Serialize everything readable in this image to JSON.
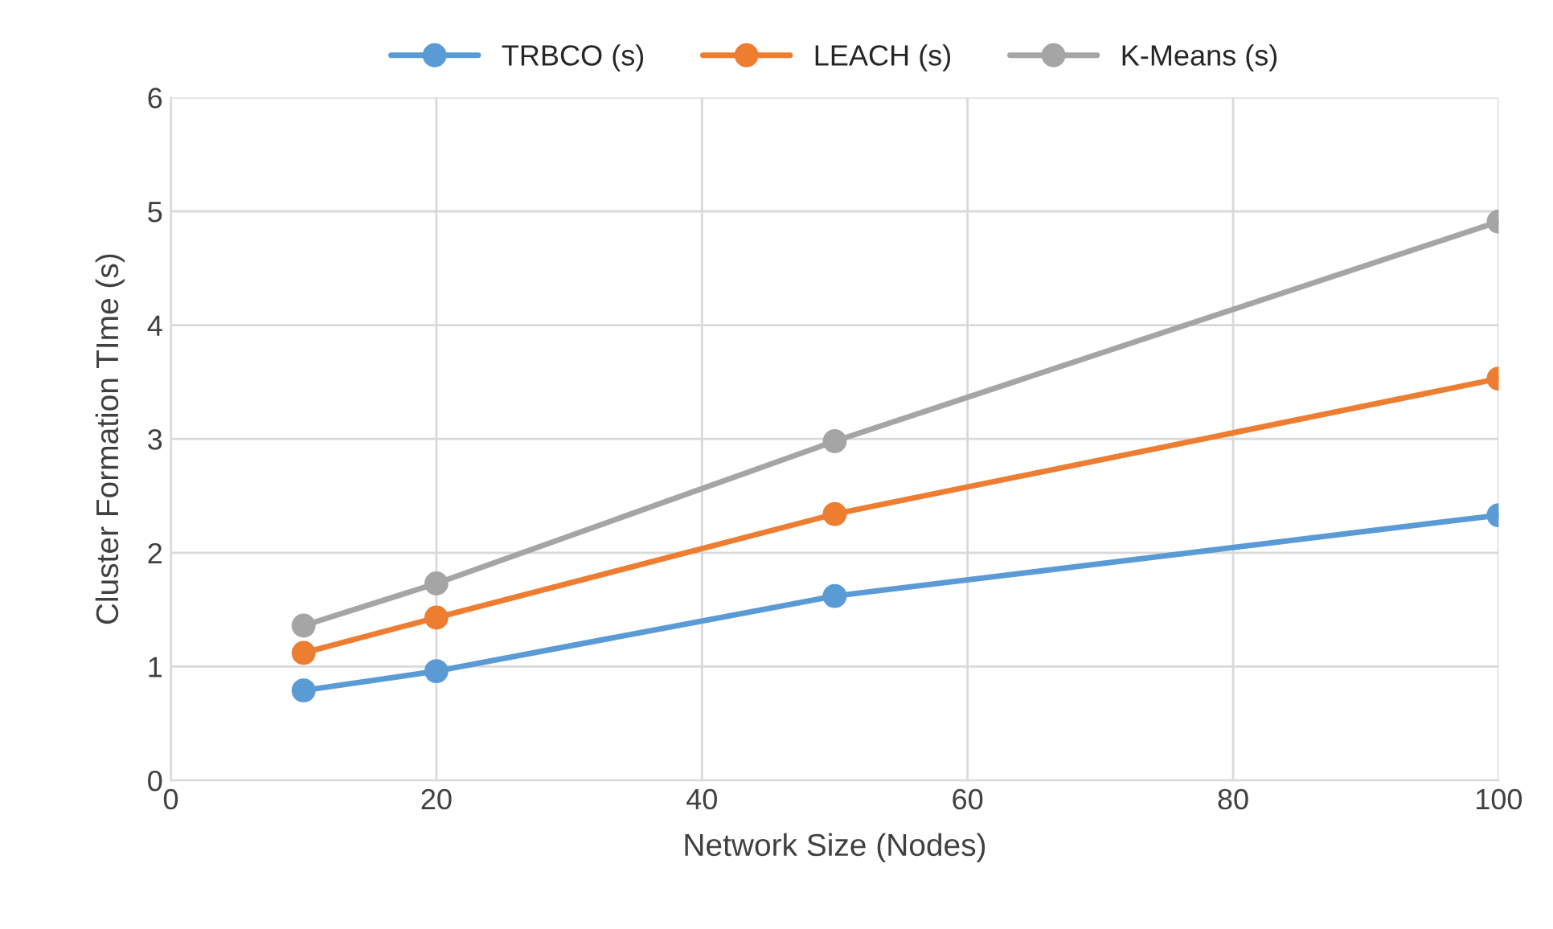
{
  "chart_data": {
    "type": "line",
    "xlabel": "Network Size (Nodes)",
    "ylabel": "Cluster Formation TIme (s)",
    "x": [
      10,
      20,
      50,
      100
    ],
    "series": [
      {
        "name": "TRBCO (s)",
        "color": "#5b9bd5",
        "values": [
          0.79,
          0.96,
          1.62,
          2.33
        ]
      },
      {
        "name": "LEACH (s)",
        "color": "#ed7d31",
        "values": [
          1.12,
          1.43,
          2.34,
          3.53
        ]
      },
      {
        "name": "K-Means (s)",
        "color": "#a5a5a5",
        "values": [
          1.36,
          1.73,
          2.98,
          4.91
        ]
      }
    ],
    "xlim": [
      0,
      100
    ],
    "xticks": [
      0,
      20,
      40,
      60,
      80,
      100
    ],
    "ylim": [
      0,
      6
    ],
    "yticks": [
      0,
      1,
      2,
      3,
      4,
      5,
      6
    ],
    "grid": true,
    "legend": "top",
    "marker": "circle",
    "line_style": "solid"
  }
}
